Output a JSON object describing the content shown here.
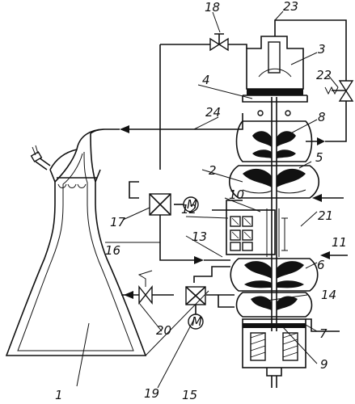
{
  "diagram": {
    "labels": [
      {
        "id": "n1",
        "text": "1"
      },
      {
        "id": "n2",
        "text": "2"
      },
      {
        "id": "n3",
        "text": "3"
      },
      {
        "id": "n4",
        "text": "4"
      },
      {
        "id": "n5",
        "text": "5"
      },
      {
        "id": "n6",
        "text": "6"
      },
      {
        "id": "n7",
        "text": "7"
      },
      {
        "id": "n8",
        "text": "8"
      },
      {
        "id": "n9",
        "text": "9"
      },
      {
        "id": "n10",
        "text": "10"
      },
      {
        "id": "n11",
        "text": "11"
      },
      {
        "id": "n12",
        "text": "12"
      },
      {
        "id": "n13",
        "text": "13"
      },
      {
        "id": "n14",
        "text": "14"
      },
      {
        "id": "n15",
        "text": "15"
      },
      {
        "id": "n16",
        "text": "16"
      },
      {
        "id": "n17",
        "text": "17"
      },
      {
        "id": "n18",
        "text": "18"
      },
      {
        "id": "n19",
        "text": "19"
      },
      {
        "id": "n20",
        "text": "20"
      },
      {
        "id": "n21",
        "text": "21"
      },
      {
        "id": "n22",
        "text": "22"
      },
      {
        "id": "n23",
        "text": "23"
      },
      {
        "id": "n24",
        "text": "24"
      }
    ],
    "motor_label": "M"
  }
}
